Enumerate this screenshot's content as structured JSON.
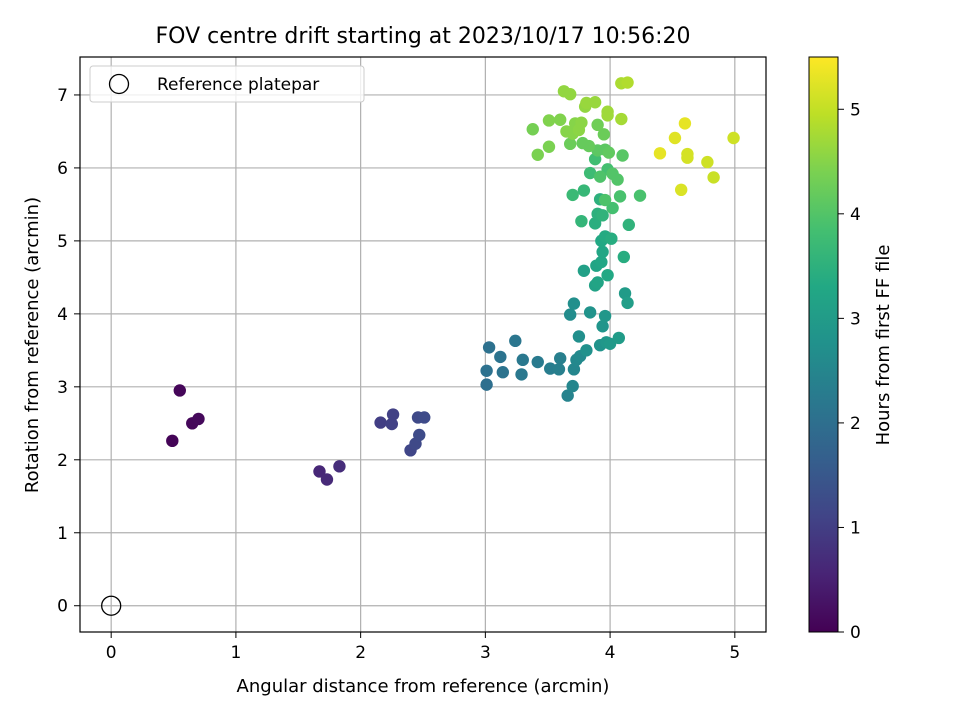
{
  "chart_data": {
    "type": "scatter",
    "title": "FOV centre drift starting at 2023/10/17 10:56:20",
    "xlabel": "Angular distance from reference (arcmin)",
    "ylabel": "Rotation from reference (arcmin)",
    "xlim": [
      -0.25,
      5.25
    ],
    "ylim": [
      -0.36,
      7.52
    ],
    "xticks": [
      0,
      1,
      2,
      3,
      4,
      5
    ],
    "yticks": [
      0,
      1,
      2,
      3,
      4,
      5,
      6,
      7
    ],
    "grid": true,
    "legend": {
      "position": "top-left",
      "entries": [
        "Reference platepar"
      ]
    },
    "reference_point": {
      "x": 0,
      "y": 0,
      "label": "Reference platepar"
    },
    "colorbar": {
      "label": "Hours from first FF file",
      "min": 0,
      "max": 5.5,
      "ticks": [
        0,
        1,
        2,
        3,
        4,
        5
      ],
      "colormap": "viridis"
    },
    "points": [
      {
        "x": 0.49,
        "y": 2.26,
        "t": 0.05
      },
      {
        "x": 0.55,
        "y": 2.95,
        "t": 0.08
      },
      {
        "x": 0.65,
        "y": 2.5,
        "t": 0.1
      },
      {
        "x": 0.7,
        "y": 2.56,
        "t": 0.12
      },
      {
        "x": 1.67,
        "y": 1.84,
        "t": 0.6
      },
      {
        "x": 1.73,
        "y": 1.73,
        "t": 0.65
      },
      {
        "x": 1.83,
        "y": 1.91,
        "t": 0.7
      },
      {
        "x": 2.16,
        "y": 2.51,
        "t": 1.0
      },
      {
        "x": 2.25,
        "y": 2.49,
        "t": 1.05
      },
      {
        "x": 2.26,
        "y": 2.62,
        "t": 1.05
      },
      {
        "x": 2.4,
        "y": 2.13,
        "t": 1.15
      },
      {
        "x": 2.44,
        "y": 2.22,
        "t": 1.2
      },
      {
        "x": 2.46,
        "y": 2.58,
        "t": 1.2
      },
      {
        "x": 2.47,
        "y": 2.34,
        "t": 1.25
      },
      {
        "x": 2.51,
        "y": 2.58,
        "t": 1.25
      },
      {
        "x": 3.01,
        "y": 3.03,
        "t": 2.0
      },
      {
        "x": 3.01,
        "y": 3.22,
        "t": 2.05
      },
      {
        "x": 3.03,
        "y": 3.54,
        "t": 2.05
      },
      {
        "x": 3.12,
        "y": 3.41,
        "t": 2.1
      },
      {
        "x": 3.14,
        "y": 3.2,
        "t": 2.1
      },
      {
        "x": 3.24,
        "y": 3.63,
        "t": 2.15
      },
      {
        "x": 3.29,
        "y": 3.17,
        "t": 2.2
      },
      {
        "x": 3.3,
        "y": 3.37,
        "t": 2.2
      },
      {
        "x": 3.42,
        "y": 3.34,
        "t": 2.25
      },
      {
        "x": 3.52,
        "y": 3.25,
        "t": 2.3
      },
      {
        "x": 3.59,
        "y": 3.24,
        "t": 2.35
      },
      {
        "x": 3.6,
        "y": 3.39,
        "t": 2.35
      },
      {
        "x": 3.66,
        "y": 2.88,
        "t": 2.45
      },
      {
        "x": 3.7,
        "y": 3.01,
        "t": 2.5
      },
      {
        "x": 3.71,
        "y": 3.24,
        "t": 2.5
      },
      {
        "x": 3.73,
        "y": 3.37,
        "t": 2.55
      },
      {
        "x": 3.76,
        "y": 3.42,
        "t": 2.6
      },
      {
        "x": 3.68,
        "y": 3.99,
        "t": 2.65
      },
      {
        "x": 3.71,
        "y": 4.14,
        "t": 2.7
      },
      {
        "x": 3.75,
        "y": 3.69,
        "t": 2.7
      },
      {
        "x": 3.81,
        "y": 3.5,
        "t": 2.75
      },
      {
        "x": 3.84,
        "y": 4.02,
        "t": 2.8
      },
      {
        "x": 3.92,
        "y": 3.57,
        "t": 2.8
      },
      {
        "x": 3.94,
        "y": 3.83,
        "t": 2.85
      },
      {
        "x": 3.96,
        "y": 3.97,
        "t": 2.9
      },
      {
        "x": 3.97,
        "y": 3.61,
        "t": 2.9
      },
      {
        "x": 4.0,
        "y": 3.59,
        "t": 2.95
      },
      {
        "x": 4.07,
        "y": 3.67,
        "t": 3.0
      },
      {
        "x": 4.12,
        "y": 4.28,
        "t": 3.0
      },
      {
        "x": 4.14,
        "y": 4.15,
        "t": 3.05
      },
      {
        "x": 3.79,
        "y": 4.59,
        "t": 3.1
      },
      {
        "x": 3.88,
        "y": 4.39,
        "t": 3.15
      },
      {
        "x": 3.89,
        "y": 4.66,
        "t": 3.2
      },
      {
        "x": 3.9,
        "y": 4.43,
        "t": 3.2
      },
      {
        "x": 3.93,
        "y": 4.71,
        "t": 3.25
      },
      {
        "x": 3.94,
        "y": 4.85,
        "t": 3.25
      },
      {
        "x": 3.93,
        "y": 5.0,
        "t": 3.3
      },
      {
        "x": 3.98,
        "y": 4.53,
        "t": 3.3
      },
      {
        "x": 3.96,
        "y": 5.06,
        "t": 3.35
      },
      {
        "x": 4.01,
        "y": 5.03,
        "t": 3.4
      },
      {
        "x": 4.11,
        "y": 4.78,
        "t": 3.4
      },
      {
        "x": 3.88,
        "y": 5.24,
        "t": 3.45
      },
      {
        "x": 3.9,
        "y": 5.37,
        "t": 3.5
      },
      {
        "x": 3.92,
        "y": 5.57,
        "t": 3.5
      },
      {
        "x": 3.94,
        "y": 5.35,
        "t": 3.55
      },
      {
        "x": 4.15,
        "y": 5.22,
        "t": 3.55
      },
      {
        "x": 3.77,
        "y": 5.27,
        "t": 3.6
      },
      {
        "x": 3.79,
        "y": 5.69,
        "t": 3.65
      },
      {
        "x": 3.7,
        "y": 5.63,
        "t": 3.7
      },
      {
        "x": 3.84,
        "y": 5.93,
        "t": 3.75
      },
      {
        "x": 3.88,
        "y": 6.12,
        "t": 3.8
      },
      {
        "x": 3.98,
        "y": 5.98,
        "t": 3.85
      },
      {
        "x": 4.02,
        "y": 5.45,
        "t": 3.85
      },
      {
        "x": 4.08,
        "y": 5.61,
        "t": 3.9
      },
      {
        "x": 4.24,
        "y": 5.62,
        "t": 3.9
      },
      {
        "x": 3.92,
        "y": 5.88,
        "t": 3.95
      },
      {
        "x": 3.96,
        "y": 5.56,
        "t": 3.95
      },
      {
        "x": 4.02,
        "y": 5.92,
        "t": 4.0
      },
      {
        "x": 4.06,
        "y": 5.84,
        "t": 4.0
      },
      {
        "x": 4.1,
        "y": 6.17,
        "t": 4.05
      },
      {
        "x": 3.9,
        "y": 6.24,
        "t": 4.1
      },
      {
        "x": 3.96,
        "y": 6.25,
        "t": 4.1
      },
      {
        "x": 3.99,
        "y": 6.21,
        "t": 4.15
      },
      {
        "x": 3.83,
        "y": 6.3,
        "t": 4.2
      },
      {
        "x": 3.78,
        "y": 6.34,
        "t": 4.2
      },
      {
        "x": 3.68,
        "y": 6.33,
        "t": 4.25
      },
      {
        "x": 3.95,
        "y": 6.46,
        "t": 4.25
      },
      {
        "x": 3.9,
        "y": 6.59,
        "t": 4.3
      },
      {
        "x": 3.38,
        "y": 6.53,
        "t": 4.35
      },
      {
        "x": 3.42,
        "y": 6.18,
        "t": 4.4
      },
      {
        "x": 3.51,
        "y": 6.29,
        "t": 4.4
      },
      {
        "x": 3.51,
        "y": 6.65,
        "t": 4.45
      },
      {
        "x": 3.6,
        "y": 6.66,
        "t": 4.45
      },
      {
        "x": 3.65,
        "y": 6.5,
        "t": 4.5
      },
      {
        "x": 3.7,
        "y": 6.47,
        "t": 4.5
      },
      {
        "x": 3.72,
        "y": 6.61,
        "t": 4.5
      },
      {
        "x": 3.75,
        "y": 6.52,
        "t": 4.55
      },
      {
        "x": 3.77,
        "y": 6.62,
        "t": 4.55
      },
      {
        "x": 3.63,
        "y": 7.05,
        "t": 4.6
      },
      {
        "x": 3.68,
        "y": 7.01,
        "t": 4.6
      },
      {
        "x": 3.8,
        "y": 6.84,
        "t": 4.6
      },
      {
        "x": 3.81,
        "y": 6.89,
        "t": 4.65
      },
      {
        "x": 3.88,
        "y": 6.9,
        "t": 4.65
      },
      {
        "x": 3.98,
        "y": 6.77,
        "t": 4.7
      },
      {
        "x": 3.98,
        "y": 6.72,
        "t": 4.7
      },
      {
        "x": 4.09,
        "y": 6.67,
        "t": 4.75
      },
      {
        "x": 4.09,
        "y": 7.16,
        "t": 4.8
      },
      {
        "x": 4.14,
        "y": 7.17,
        "t": 4.85
      },
      {
        "x": 4.4,
        "y": 6.2,
        "t": 5.3
      },
      {
        "x": 4.52,
        "y": 6.41,
        "t": 5.25
      },
      {
        "x": 4.57,
        "y": 5.7,
        "t": 5.2
      },
      {
        "x": 4.6,
        "y": 6.61,
        "t": 5.3
      },
      {
        "x": 4.62,
        "y": 6.14,
        "t": 5.15
      },
      {
        "x": 4.62,
        "y": 6.19,
        "t": 5.15
      },
      {
        "x": 4.78,
        "y": 6.08,
        "t": 5.1
      },
      {
        "x": 4.83,
        "y": 5.87,
        "t": 5.05
      },
      {
        "x": 4.99,
        "y": 6.41,
        "t": 5.1
      }
    ]
  }
}
